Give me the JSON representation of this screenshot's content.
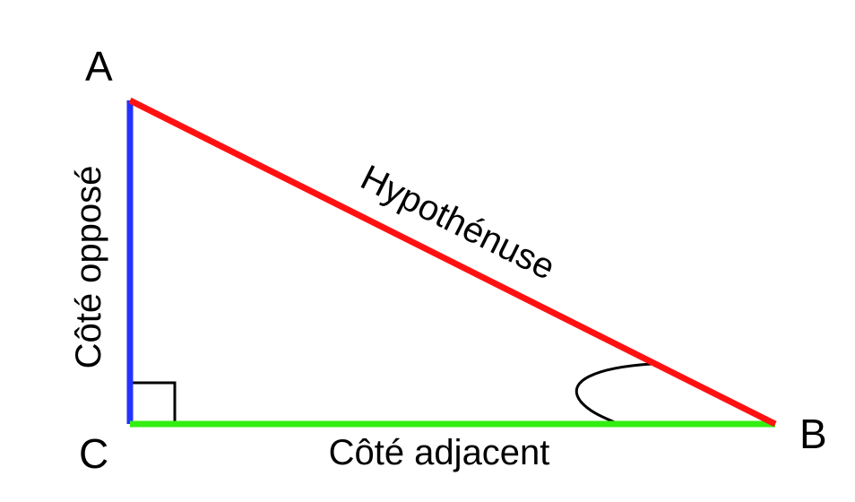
{
  "vertices": {
    "a": "A",
    "b": "B",
    "c": "C"
  },
  "sides": {
    "opposite": {
      "label": "Côté opposé",
      "color": "#2233ff"
    },
    "adjacent": {
      "label": "Côté adjacent",
      "color": "#33ee11"
    },
    "hypotenuse": {
      "label": "Hypothénuse",
      "color": "#ff1111"
    }
  }
}
